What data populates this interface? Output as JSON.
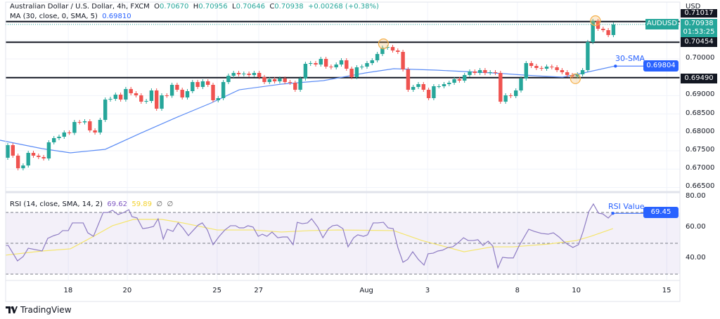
{
  "header": {
    "symbol_title": "Australian Dollar / U.S. Dollar, 4h, FXCM",
    "open_label": "O",
    "open": "0.70670",
    "high_label": "H",
    "high": "0.70956",
    "low_label": "L",
    "low": "0.70646",
    "close_label": "C",
    "close": "0.70938",
    "change": "+0.00268 (+0.38%)",
    "ma_title": "MA (30, close, 0, SMA, 5)",
    "ma_value": "0.69810"
  },
  "rsi_header": {
    "title": "RSI (14, close, SMA, 14, 2)",
    "rsi_value": "69.62",
    "sma_value": "59.89",
    "extra1": "∅",
    "extra2": "∅"
  },
  "price_axis": {
    "currency": "USD",
    "labels": [
      "0.70000",
      "0.69000",
      "0.68500",
      "0.68000",
      "0.67500",
      "0.67000",
      "0.66500"
    ],
    "tag_top": "0.71017",
    "tag_symbol": "AUDUSD",
    "tag_price": "0.70938",
    "tag_countdown": "01:53:25",
    "tag_resistance": "0.70454",
    "tag_support": "0.69490",
    "tag_sma": "0.69804"
  },
  "rsi_axis": {
    "labels": [
      "80.00",
      "60.00",
      "40.00"
    ],
    "tag_value": "69.45"
  },
  "annotations": {
    "sma_label": "30-SMA",
    "rsi_label": "RSI Value"
  },
  "x_axis": {
    "labels": [
      "18",
      "20",
      "25",
      "27",
      "Aug",
      "3",
      "8",
      "10",
      "15"
    ]
  },
  "footer": {
    "brand": "TradingView"
  },
  "colors": {
    "up": "#26a69a",
    "down": "#ef5350",
    "ma": "#5b8cf5",
    "rsi": "#8e7cc3",
    "rsi_sma": "#f5e56b",
    "accent": "#2962ff",
    "highlight": "#f5b04a"
  },
  "chart_data": [
    {
      "type": "candlestick",
      "title": "Australian Dollar / U.S. Dollar, 4h, FXCM",
      "ylim": [
        0.664,
        0.712
      ],
      "first_open": 0.6731,
      "closes": [
        0.67653,
        0.67367,
        0.67024,
        0.671,
        0.67443,
        0.67367,
        0.67329,
        0.67291,
        0.67729,
        0.67844,
        0.67882,
        0.67997,
        0.67987,
        0.68283,
        0.68273,
        0.68302,
        0.68054,
        0.67997,
        0.6834,
        0.68893,
        0.68912,
        0.69027,
        0.68893,
        0.6918,
        0.69065,
        0.69008,
        0.68836,
        0.68855,
        0.69141,
        0.68645,
        0.69008,
        0.68998,
        0.69294,
        0.6916,
        0.68951,
        0.69122,
        0.6937,
        0.69237,
        0.69389,
        0.69294,
        0.68874,
        0.68932,
        0.6937,
        0.69542,
        0.69618,
        0.6958,
        0.69599,
        0.69561,
        0.69618,
        0.69504,
        0.6937,
        0.69447,
        0.69389,
        0.69466,
        0.6937,
        0.69351,
        0.6916,
        0.69466,
        0.69866,
        0.69886,
        0.69847,
        0.7,
        0.6979,
        0.69771,
        0.69847,
        0.69962,
        0.69733,
        0.69504,
        0.69771,
        0.6979,
        0.69886,
        0.69962,
        0.70134,
        0.70305,
        0.70324,
        0.70229,
        0.70191,
        0.69714,
        0.6916,
        0.69237,
        0.69313,
        0.6916,
        0.68932,
        0.69256,
        0.69256,
        0.69313,
        0.69351,
        0.69447,
        0.69409,
        0.69561,
        0.69657,
        0.69618,
        0.69695,
        0.69618,
        0.69637,
        0.69618,
        0.68836,
        0.69008,
        0.68989,
        0.69141,
        0.69466,
        0.69886,
        0.69809,
        0.69752,
        0.69733,
        0.6979,
        0.69771,
        0.69695,
        0.69637,
        0.69561,
        0.69523,
        0.6958,
        0.69695,
        0.70458,
        0.7103,
        0.7082,
        0.70782,
        0.70649,
        0.70938
      ],
      "horizontal_levels": [
        0.71017,
        0.70454,
        0.6949
      ],
      "current_price": 0.70938,
      "ma30": [
        [
          -1.5,
          0.67787
        ],
        [
          6.7,
          0.67558
        ],
        [
          12.2,
          0.67443
        ],
        [
          19.0,
          0.67539
        ],
        [
          25.9,
          0.67978
        ],
        [
          32.7,
          0.68397
        ],
        [
          39.6,
          0.68798
        ],
        [
          45.1,
          0.6916
        ],
        [
          53.3,
          0.69313
        ],
        [
          61.5,
          0.69409
        ],
        [
          69.7,
          0.69618
        ],
        [
          75.2,
          0.69733
        ],
        [
          83.4,
          0.69695
        ],
        [
          94.4,
          0.69618
        ],
        [
          102.6,
          0.69542
        ],
        [
          108.1,
          0.69504
        ],
        [
          112.2,
          0.69618
        ],
        [
          118.4,
          0.69809
        ]
      ],
      "sma_marker": [
        118.4,
        0.69804
      ],
      "highlights": [
        [
          73.2,
          0.7041
        ],
        [
          114.5,
          0.7104
        ],
        [
          110.6,
          0.6946
        ]
      ],
      "x_tick_bars": [
        11.8,
        23.3,
        40.8,
        48.9,
        69.9,
        81.8,
        99.3,
        110.8,
        128.4
      ]
    },
    {
      "type": "line",
      "title": "RSI (14, close, SMA, 14, 2)",
      "ylim": [
        22,
        84
      ],
      "bands": [
        70,
        50,
        30
      ],
      "rsi": [
        [
          -0.4,
          48.6
        ],
        [
          0.1,
          48.6
        ],
        [
          1.9,
          38.6
        ],
        [
          3.0,
          41.4
        ],
        [
          4.0,
          46.8
        ],
        [
          6.7,
          45
        ],
        [
          7.8,
          53.2
        ],
        [
          9.0,
          55
        ],
        [
          9.9,
          55.9
        ],
        [
          10.7,
          58.2
        ],
        [
          11.8,
          58.2
        ],
        [
          12.6,
          63.2
        ],
        [
          14.7,
          63.2
        ],
        [
          15.6,
          56.8
        ],
        [
          16.7,
          54.5
        ],
        [
          18.6,
          70
        ],
        [
          19.5,
          70
        ],
        [
          20.4,
          71.4
        ],
        [
          21.5,
          68.6
        ],
        [
          22.6,
          70
        ],
        [
          23.6,
          71.8
        ],
        [
          24.2,
          67.3
        ],
        [
          25.2,
          66.4
        ],
        [
          26.3,
          59.5
        ],
        [
          27.3,
          60
        ],
        [
          28.4,
          60.9
        ],
        [
          29.3,
          65.9
        ],
        [
          30.3,
          52.7
        ],
        [
          31.1,
          59.1
        ],
        [
          32.2,
          57.7
        ],
        [
          33.2,
          63.2
        ],
        [
          34.1,
          60
        ],
        [
          35.2,
          55
        ],
        [
          36.2,
          58.6
        ],
        [
          37.1,
          61.8
        ],
        [
          37.9,
          63.2
        ],
        [
          38.9,
          58.6
        ],
        [
          40.0,
          49.1
        ],
        [
          41.2,
          54.5
        ],
        [
          42.3,
          58.6
        ],
        [
          43.4,
          61.4
        ],
        [
          44.4,
          61.4
        ],
        [
          45.1,
          60
        ],
        [
          46.0,
          60
        ],
        [
          46.8,
          61.4
        ],
        [
          47.8,
          60.5
        ],
        [
          48.8,
          54.5
        ],
        [
          49.6,
          55.9
        ],
        [
          50.5,
          54.5
        ],
        [
          51.5,
          57.3
        ],
        [
          52.6,
          53.6
        ],
        [
          53.6,
          54.1
        ],
        [
          54.5,
          54.1
        ],
        [
          55.6,
          49.1
        ],
        [
          56.4,
          63.6
        ],
        [
          57.4,
          62.7
        ],
        [
          58.4,
          63.2
        ],
        [
          59.2,
          65.9
        ],
        [
          60.4,
          60.5
        ],
        [
          61.4,
          53.6
        ],
        [
          62.5,
          59.5
        ],
        [
          63.3,
          61.4
        ],
        [
          64.2,
          61.8
        ],
        [
          65.3,
          59.5
        ],
        [
          66.3,
          47.7
        ],
        [
          67.4,
          53.6
        ],
        [
          68.2,
          55.5
        ],
        [
          69.3,
          54.5
        ],
        [
          70.1,
          55.5
        ],
        [
          71.2,
          63.2
        ],
        [
          72.1,
          63.2
        ],
        [
          73.2,
          63.6
        ],
        [
          74.1,
          60
        ],
        [
          75.1,
          59.5
        ],
        [
          76.0,
          47.3
        ],
        [
          77.0,
          37.7
        ],
        [
          77.9,
          39.5
        ],
        [
          78.9,
          44.5
        ],
        [
          80.0,
          39.5
        ],
        [
          81.1,
          35.9
        ],
        [
          81.9,
          43.2
        ],
        [
          82.9,
          43.6
        ],
        [
          83.8,
          45
        ],
        [
          84.7,
          45.5
        ],
        [
          85.8,
          47.3
        ],
        [
          86.7,
          47.7
        ],
        [
          87.8,
          50.5
        ],
        [
          88.8,
          53.6
        ],
        [
          89.7,
          51.8
        ],
        [
          90.7,
          51.8
        ],
        [
          91.6,
          52.3
        ],
        [
          92.6,
          48.6
        ],
        [
          93.6,
          51.4
        ],
        [
          94.5,
          48.2
        ],
        [
          95.5,
          34.1
        ],
        [
          96.4,
          40.9
        ],
        [
          97.5,
          40.5
        ],
        [
          98.5,
          40.5
        ],
        [
          99.6,
          48.2
        ],
        [
          101.5,
          59.1
        ],
        [
          102.6,
          57.7
        ],
        [
          104.0,
          56.4
        ],
        [
          105.3,
          55.9
        ],
        [
          106.3,
          56.8
        ],
        [
          107.4,
          54.1
        ],
        [
          108.4,
          50.9
        ],
        [
          109.2,
          49.1
        ],
        [
          110.1,
          47.3
        ],
        [
          111.2,
          49.1
        ],
        [
          112.1,
          57.7
        ],
        [
          113.2,
          70.5
        ],
        [
          114.1,
          75.5
        ],
        [
          115.1,
          69.5
        ],
        [
          115.9,
          69.1
        ],
        [
          117.0,
          66.4
        ],
        [
          117.9,
          69.45
        ]
      ],
      "rsi_sma": [
        [
          -0.4,
          42.3
        ],
        [
          6.7,
          45
        ],
        [
          12.2,
          46.4
        ],
        [
          16.7,
          54.5
        ],
        [
          20.4,
          61.4
        ],
        [
          24.5,
          65.5
        ],
        [
          30.0,
          65.5
        ],
        [
          34.1,
          63.2
        ],
        [
          40.8,
          58.6
        ],
        [
          47.8,
          58.6
        ],
        [
          53.3,
          57.3
        ],
        [
          58.8,
          58.2
        ],
        [
          64.2,
          58.6
        ],
        [
          75.2,
          58.2
        ],
        [
          80.7,
          51.8
        ],
        [
          88.9,
          44.5
        ],
        [
          94.4,
          47.7
        ],
        [
          98.5,
          47.7
        ],
        [
          105.3,
          49.5
        ],
        [
          110.8,
          51.8
        ],
        [
          113.6,
          54.5
        ],
        [
          117.9,
          59.5
        ]
      ],
      "rsi_marker": [
        117.9,
        69.45
      ]
    }
  ]
}
